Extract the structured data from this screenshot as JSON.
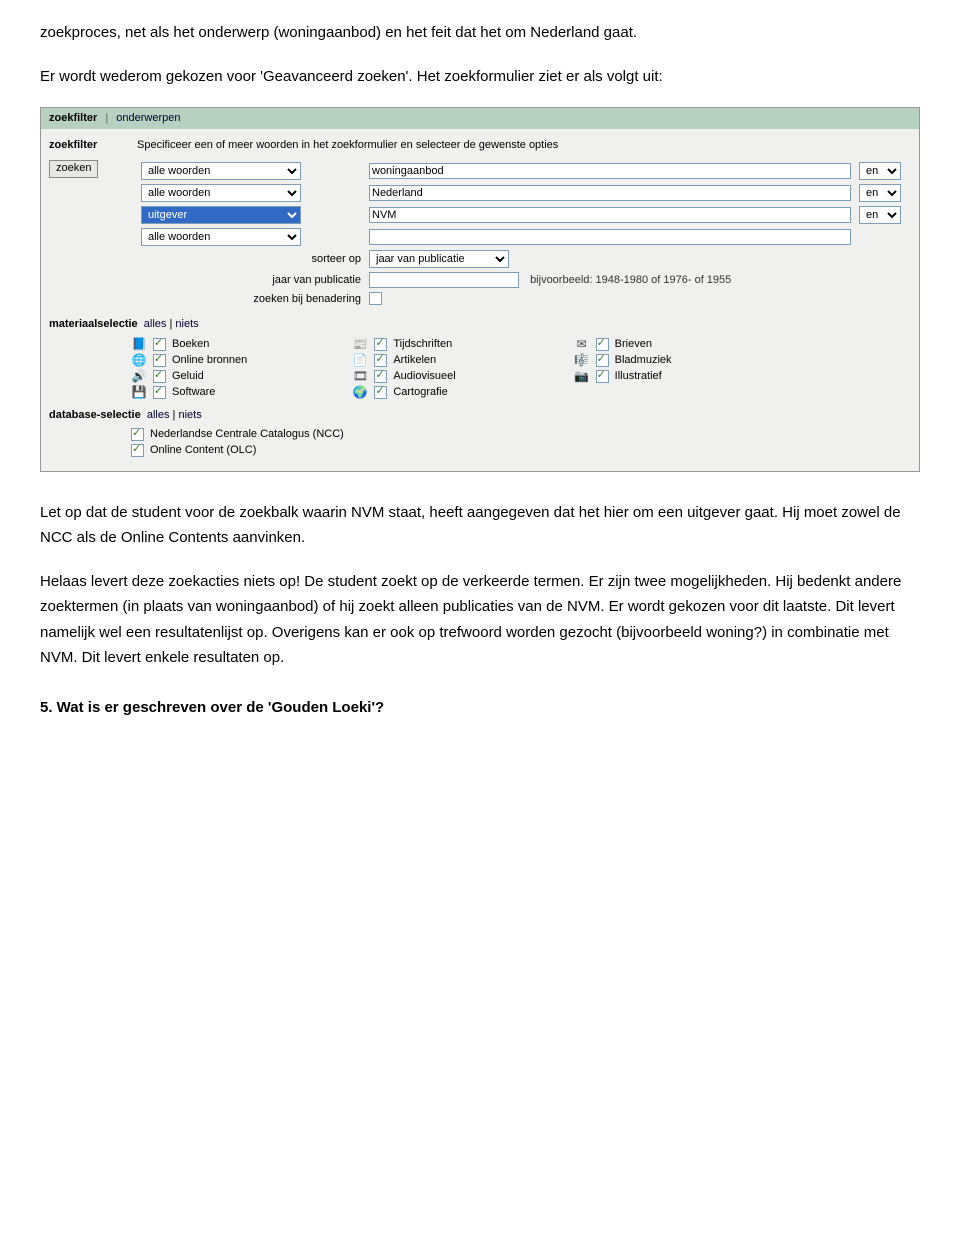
{
  "para1": "zoekproces, net als het onderwerp (woningaanbod) en het feit dat het om Nederland gaat.",
  "para2": "Er wordt wederom gekozen voor 'Geavanceerd zoeken'. Het zoekformulier ziet er als volgt uit:",
  "tabs": {
    "zoekfilter": "zoekfilter",
    "onderwerpen": "onderwerpen"
  },
  "leftcol": {
    "label": "zoekfilter",
    "button": "zoeken"
  },
  "hint": "Specificeer een of meer woorden in het zoekformulier en selecteer de gewenste opties",
  "rows": [
    {
      "field": "alle woorden",
      "term": "woningaanbod",
      "bool": "en",
      "selected": false
    },
    {
      "field": "alle woorden",
      "term": "Nederland",
      "bool": "en",
      "selected": false
    },
    {
      "field": "uitgever",
      "term": "NVM",
      "bool": "en",
      "selected": true
    },
    {
      "field": "alle woorden",
      "term": "",
      "bool": "",
      "selected": false
    }
  ],
  "sort": {
    "label": "sorteer op",
    "value": "jaar van publicatie"
  },
  "year": {
    "label": "jaar van publicatie",
    "value": "",
    "example": "bijvoorbeeld: 1948-1980 of 1976- of 1955"
  },
  "approx": {
    "label": "zoeken bij benadering"
  },
  "materiaal": {
    "header": "materiaalselectie",
    "alles": "alles",
    "niets": "niets",
    "items": [
      {
        "icon": "📘",
        "label": "Boeken"
      },
      {
        "icon": "📰",
        "label": "Tijdschriften"
      },
      {
        "icon": "✉",
        "label": "Brieven"
      },
      {
        "icon": "🌐",
        "label": "Online bronnen"
      },
      {
        "icon": "📄",
        "label": "Artikelen"
      },
      {
        "icon": "🎼",
        "label": "Bladmuziek"
      },
      {
        "icon": "🔊",
        "label": "Geluid"
      },
      {
        "icon": "🎞",
        "label": "Audiovisueel"
      },
      {
        "icon": "📷",
        "label": "Illustratief"
      },
      {
        "icon": "💾",
        "label": "Software"
      },
      {
        "icon": "🌍",
        "label": "Cartografie"
      }
    ]
  },
  "database": {
    "header": "database-selectie",
    "alles": "alles",
    "niets": "niets",
    "items": [
      "Nederlandse Centrale Catalogus (NCC)",
      "Online Content (OLC)"
    ]
  },
  "para3": "Let op dat de student voor de zoekbalk waarin NVM staat, heeft aangegeven dat het hier om een uitgever gaat. Hij moet zowel de NCC als de Online Contents aanvinken.",
  "para4": "Helaas levert deze zoekacties niets op! De student zoekt op de verkeerde termen. Er zijn twee mogelijkheden. Hij bedenkt andere zoektermen (in plaats van woningaanbod) of hij zoekt alleen publicaties van de NVM. Er wordt gekozen voor dit laatste. Dit levert namelijk wel een resultatenlijst op. Overigens kan er ook op trefwoord worden gezocht (bijvoorbeeld woning?) in combinatie met NVM. Dit levert enkele resultaten op.",
  "q5": "5.  Wat is er geschreven over de 'Gouden Loeki'?"
}
